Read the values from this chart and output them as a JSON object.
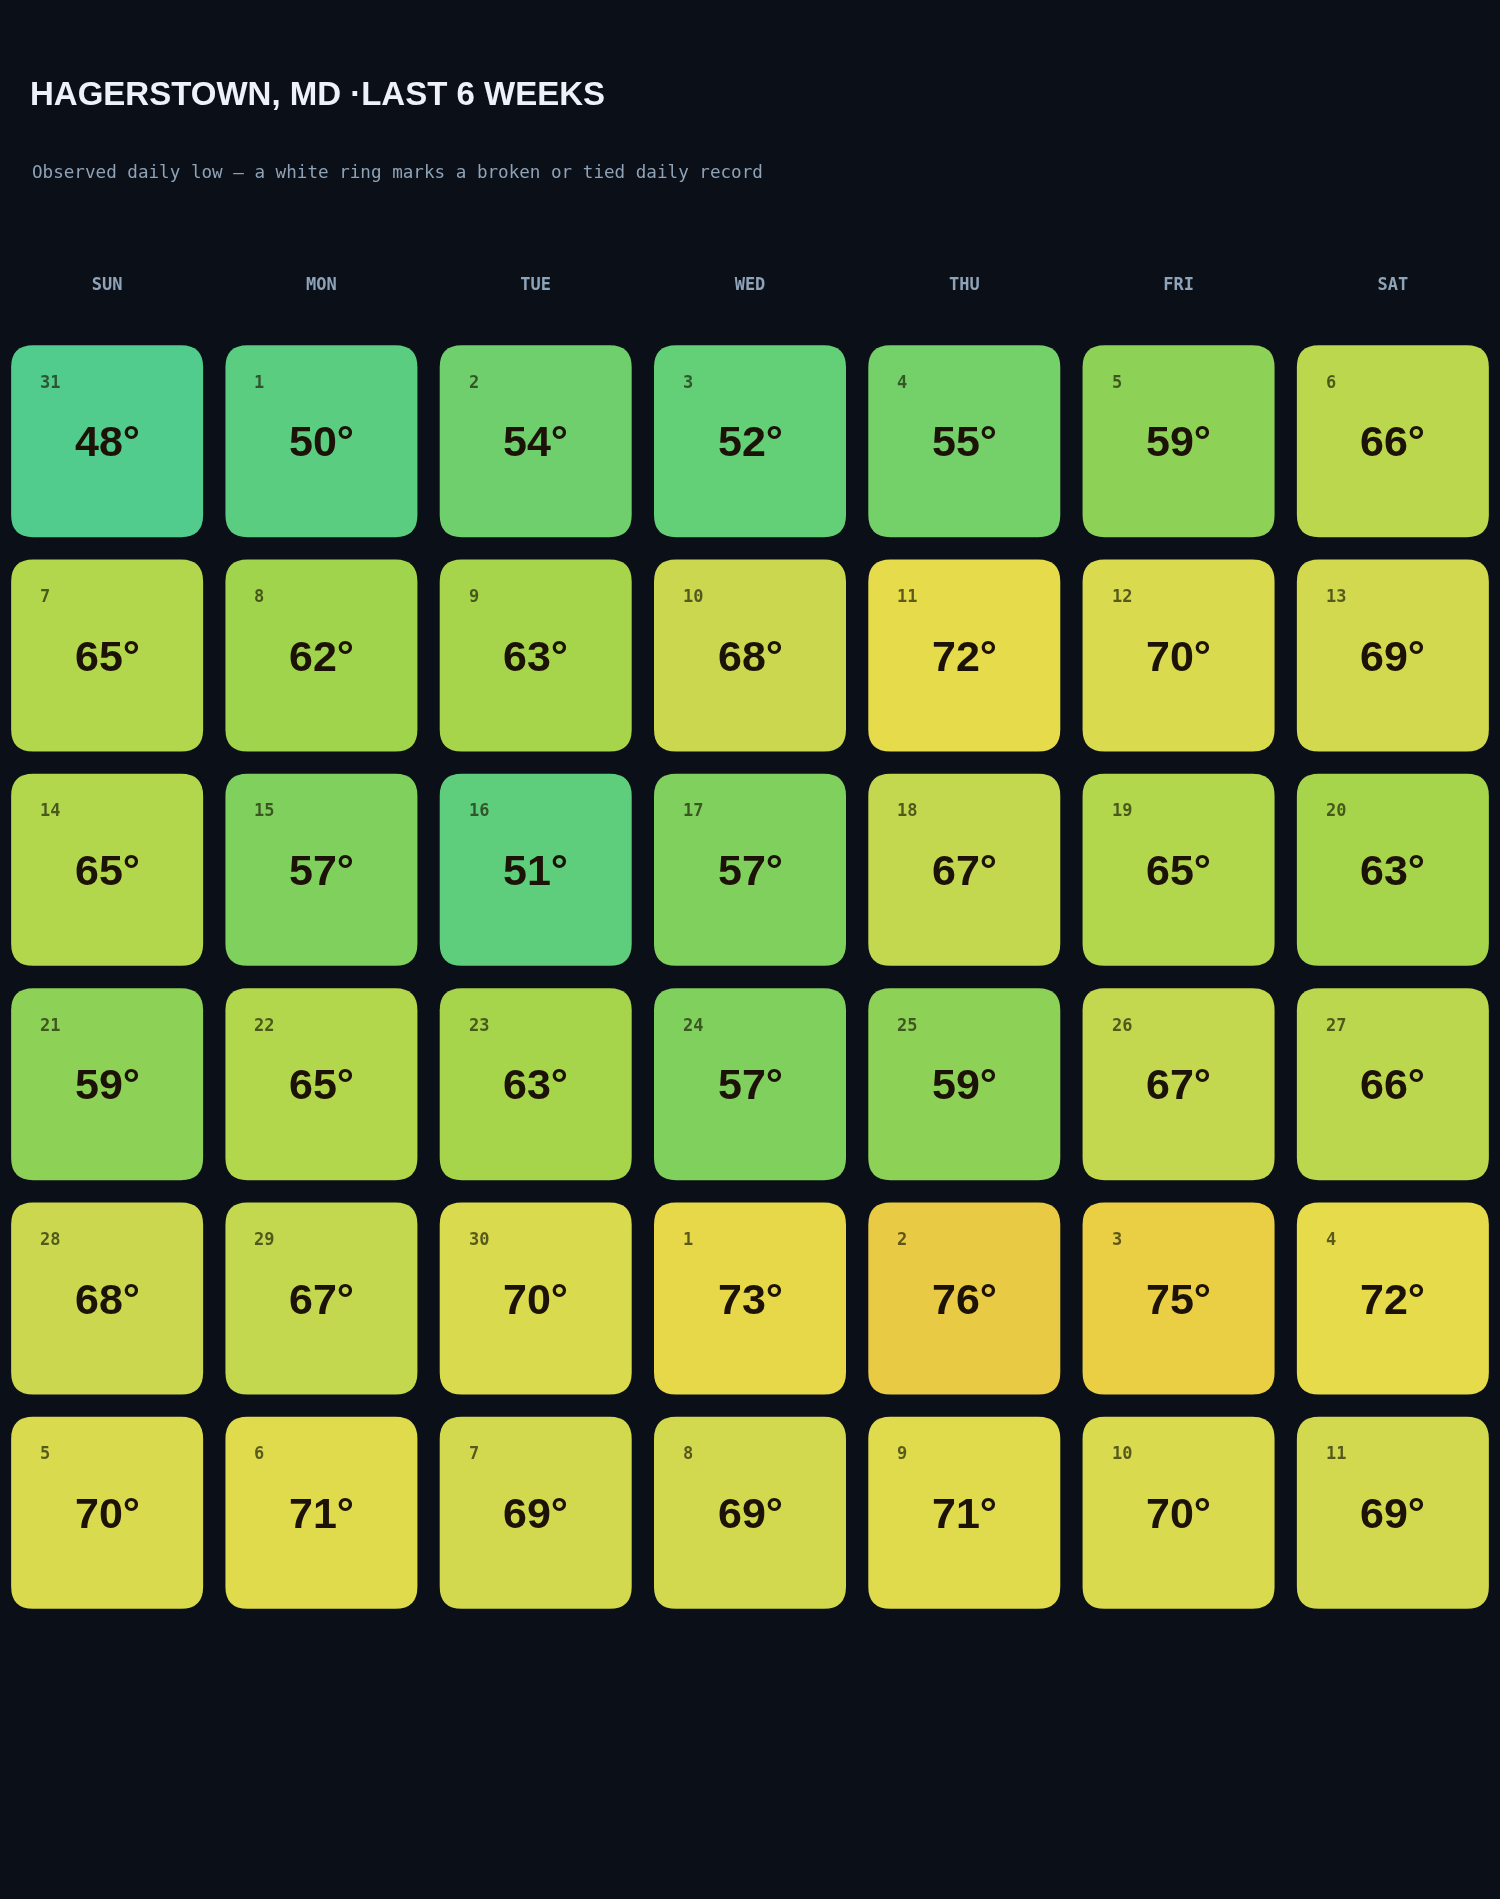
{
  "chart_data": {
    "type": "heatmap",
    "title": "HAGERSTOWN, MD ·LAST 6 WEEKS",
    "subtitle": "Observed daily low — a white ring marks a broken or tied daily record",
    "categories": [
      "SUN",
      "MON",
      "TUE",
      "WED",
      "THU",
      "FRI",
      "SAT"
    ],
    "y_categories": [
      null,
      null,
      null,
      null,
      null,
      null
    ],
    "cells": [
      [
        48,
        50,
        54,
        52,
        55,
        59,
        66
      ],
      [
        65,
        62,
        63,
        68,
        72,
        70,
        69
      ],
      [
        65,
        57,
        51,
        57,
        67,
        65,
        63
      ],
      [
        59,
        65,
        63,
        57,
        59,
        67,
        66
      ],
      [
        68,
        67,
        70,
        73,
        76,
        75,
        72
      ],
      [
        70,
        71,
        69,
        69,
        71,
        70,
        69
      ]
    ],
    "cell_labels": [
      [
        "48°",
        "50°",
        "54°",
        "52°",
        "55°",
        "59°",
        "66°"
      ],
      [
        "65°",
        "62°",
        "63°",
        "68°",
        "72°",
        "70°",
        "69°"
      ],
      [
        "65°",
        "57°",
        "51°",
        "57°",
        "67°",
        "65°",
        "63°"
      ],
      [
        "59°",
        "65°",
        "63°",
        "57°",
        "59°",
        "67°",
        "66°"
      ],
      [
        "68°",
        "67°",
        "70°",
        "73°",
        "76°",
        "75°",
        "72°"
      ],
      [
        "70°",
        "71°",
        "69°",
        "69°",
        "71°",
        "70°",
        "69°"
      ]
    ],
    "annotations": [
      "31",
      "1",
      "2",
      "3",
      "4",
      "5",
      "6",
      "7",
      "8",
      "9",
      "10",
      "11",
      "12",
      "13",
      "14",
      "15",
      "16",
      "17",
      "18",
      "19",
      "20",
      "21",
      "22",
      "23",
      "24",
      "25",
      "26",
      "27",
      "28",
      "29",
      "30",
      "1",
      "2",
      "3",
      "4",
      "5",
      "6",
      "7",
      "8",
      "9",
      "10",
      "11"
    ],
    "tick_labels": "x"
  }
}
